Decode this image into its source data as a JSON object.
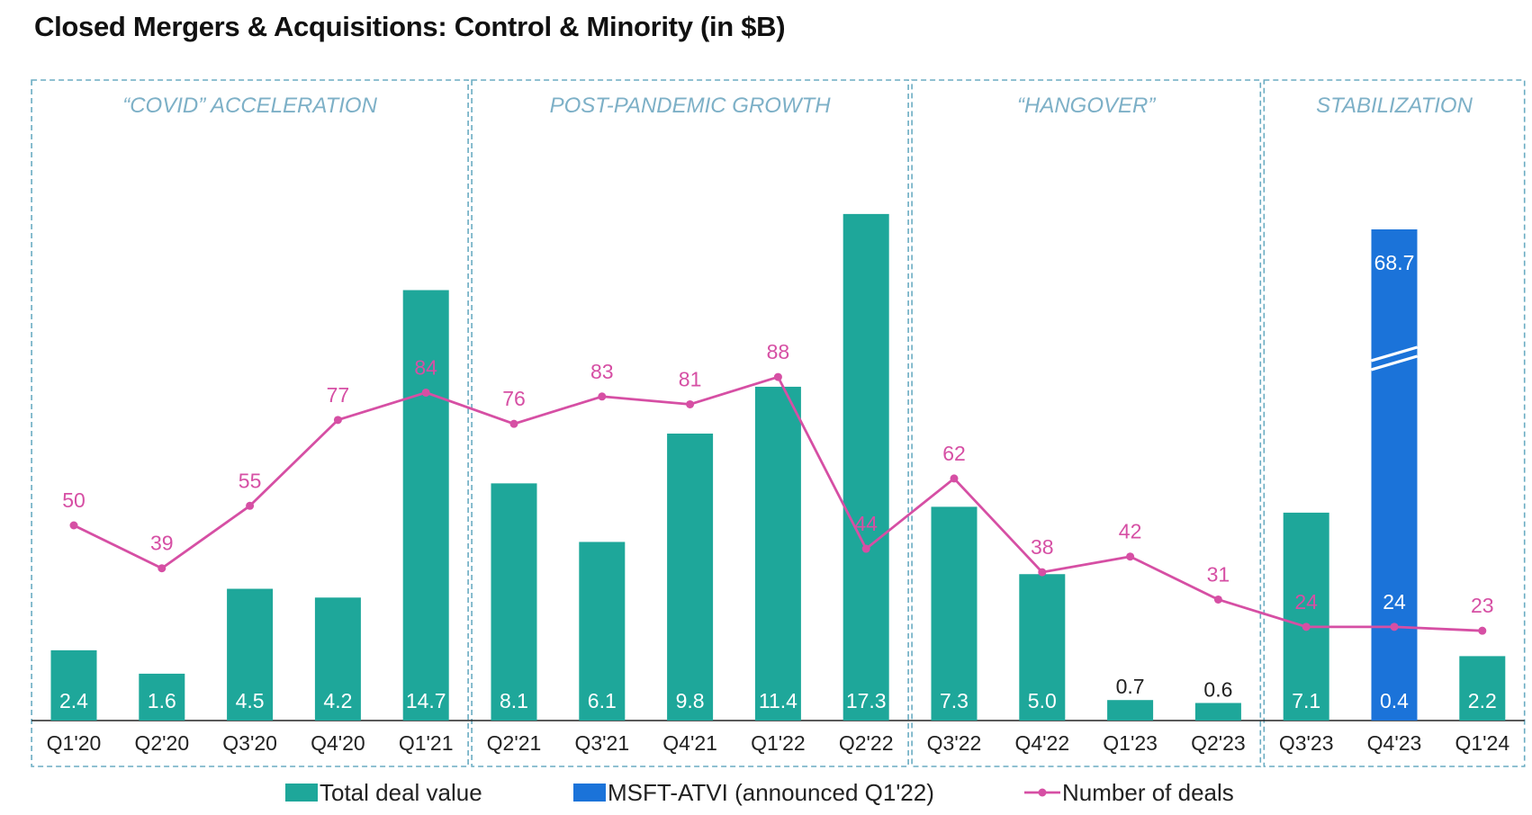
{
  "chart_data": {
    "type": "bar",
    "title": "Closed Mergers & Acquisitions: Control & Minority (in $B)",
    "categories": [
      "Q1'20",
      "Q2'20",
      "Q3'20",
      "Q4'20",
      "Q1'21",
      "Q2'21",
      "Q3'21",
      "Q4'21",
      "Q1'22",
      "Q2'22",
      "Q3'22",
      "Q4'22",
      "Q1'23",
      "Q2'23",
      "Q3'23",
      "Q4'23",
      "Q1'24"
    ],
    "series": [
      {
        "name": "Total deal value",
        "kind": "bar",
        "color": "#1ea79a",
        "values": [
          2.4,
          1.6,
          4.5,
          4.2,
          14.7,
          8.1,
          6.1,
          9.8,
          11.4,
          17.3,
          7.3,
          5.0,
          0.7,
          0.6,
          7.1,
          0.4,
          2.2
        ],
        "labels": [
          "2.4",
          "1.6",
          "4.5",
          "4.2",
          "14.7",
          "8.1",
          "6.1",
          "9.8",
          "11.4",
          "17.3",
          "7.3",
          "5.0",
          "0.7",
          "0.6",
          "7.1",
          "0.4",
          "2.2"
        ]
      },
      {
        "name": "MSFT-ATVI (announced Q1'22)",
        "kind": "bar",
        "color": "#1b73d9",
        "values": [
          null,
          null,
          null,
          null,
          null,
          null,
          null,
          null,
          null,
          null,
          null,
          null,
          null,
          null,
          null,
          68.7,
          null
        ],
        "labels": [
          "",
          "",
          "",
          "",
          "",
          "",
          "",
          "",
          "",
          "",
          "",
          "",
          "",
          "",
          "",
          "68.7",
          ""
        ]
      },
      {
        "name": "Number of deals",
        "kind": "line",
        "color": "#d64fa4",
        "values": [
          50,
          39,
          55,
          77,
          84,
          76,
          83,
          81,
          88,
          44,
          62,
          38,
          42,
          31,
          24,
          24,
          23
        ],
        "labels": [
          "50",
          "39",
          "55",
          "77",
          "84",
          "76",
          "83",
          "81",
          "88",
          "44",
          "62",
          "38",
          "42",
          "31",
          "24",
          "24",
          "23"
        ]
      }
    ],
    "phases": [
      {
        "label": "“COVID” ACCELERATION",
        "from": 0,
        "to": 4
      },
      {
        "label": "POST-PANDEMIC GROWTH",
        "from": 5,
        "to": 9
      },
      {
        "label": "“HANGOVER”",
        "from": 10,
        "to": 13
      },
      {
        "label": "STABILIZATION",
        "from": 14,
        "to": 16
      }
    ],
    "deal_value_axis": {
      "min": 0,
      "max": 20,
      "hidden": true
    },
    "deal_count_axis": {
      "min": 0,
      "max": 150,
      "hidden": true
    },
    "msft_bar_break": true,
    "legend_position": "bottom",
    "colors": {
      "phase_border": "#6aacc2",
      "phase_label": "#7db0c7",
      "bar_label_inside": "#ffffff",
      "bar_label_outside": "#222222",
      "count_label": "#d64fa4",
      "axis": "#222222"
    }
  }
}
